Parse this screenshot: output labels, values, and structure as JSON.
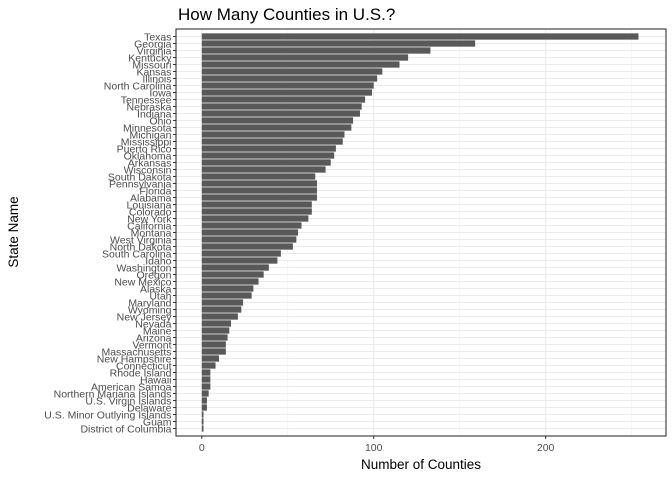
{
  "chart_data": {
    "type": "bar",
    "orientation": "horizontal",
    "title": "How Many Counties in U.S.?",
    "xlabel": "Number of Counties",
    "ylabel": "State Name",
    "xlim": [
      -15,
      270
    ],
    "xticks": [
      0,
      100,
      200
    ],
    "grid": true,
    "legend": "none",
    "bar_color": "#595959",
    "categories": [
      "Texas",
      "Georgia",
      "Virginia",
      "Kentucky",
      "Missouri",
      "Kansas",
      "Illinois",
      "North Carolina",
      "Iowa",
      "Tennessee",
      "Nebraska",
      "Indiana",
      "Ohio",
      "Minnesota",
      "Michigan",
      "Mississippi",
      "Puerto Rico",
      "Oklahoma",
      "Arkansas",
      "Wisconsin",
      "South Dakota",
      "Pennsylvania",
      "Florida",
      "Alabama",
      "Louisiana",
      "Colorado",
      "New York",
      "California",
      "Montana",
      "West Virginia",
      "North Dakota",
      "South Carolina",
      "Idaho",
      "Washington",
      "Oregon",
      "New Mexico",
      "Alaska",
      "Utah",
      "Maryland",
      "Wyoming",
      "New Jersey",
      "Nevada",
      "Maine",
      "Arizona",
      "Vermont",
      "Massachusetts",
      "New Hampshire",
      "Connecticut",
      "Rhode Island",
      "Hawaii",
      "American Samoa",
      "Northern Mariana Islands",
      "U.S. Virgin Islands",
      "Delaware",
      "U.S. Minor Outlying Islands",
      "Guam",
      "District of Columbia"
    ],
    "values": [
      254,
      159,
      133,
      120,
      115,
      105,
      102,
      100,
      99,
      95,
      93,
      92,
      88,
      87,
      83,
      82,
      78,
      77,
      75,
      72,
      66,
      67,
      67,
      67,
      64,
      64,
      62,
      58,
      56,
      55,
      53,
      46,
      44,
      39,
      36,
      33,
      30,
      29,
      24,
      23,
      21,
      17,
      16,
      15,
      14,
      14,
      10,
      8,
      5,
      5,
      5,
      4,
      3,
      3,
      1,
      1,
      1
    ]
  }
}
